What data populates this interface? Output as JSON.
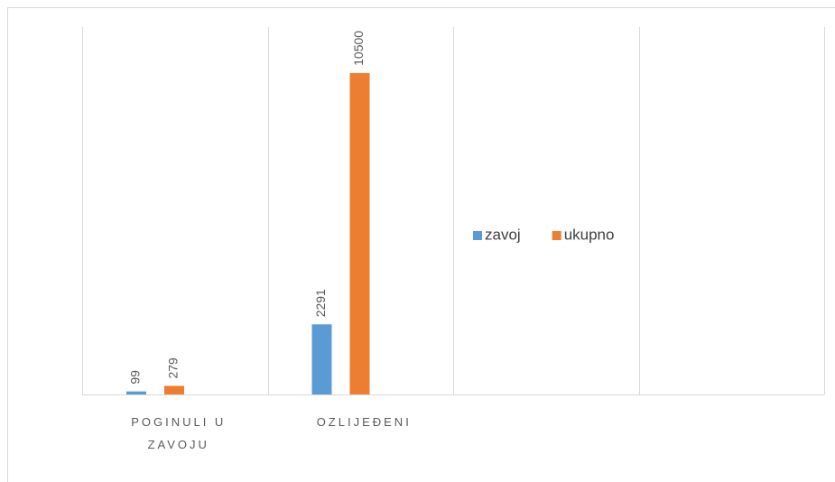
{
  "chart_data": {
    "type": "bar",
    "categories": [
      "POGINULI U ZAVOJU",
      "OZLIJEĐENI",
      null,
      null
    ],
    "series": [
      {
        "name": "zavoj",
        "color": "#5b9bd5",
        "values": [
          99,
          2291,
          null,
          null
        ]
      },
      {
        "name": "ukupno",
        "color": "#ed7d31",
        "values": [
          279,
          10500,
          null,
          null
        ]
      }
    ],
    "ylim": [
      0,
      12000
    ],
    "legend": "right"
  }
}
